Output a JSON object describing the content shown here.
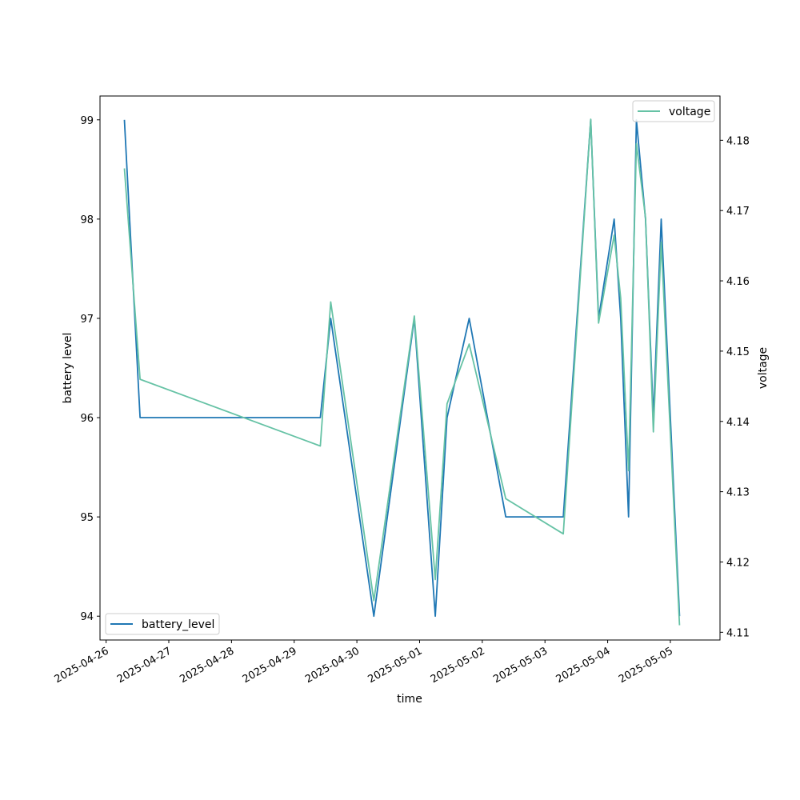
{
  "chart_data": {
    "type": "line",
    "xlabel": "time",
    "ylabel_left": "battery level",
    "ylabel_right": "voltage",
    "x_ticks": [
      "2025-04-26",
      "2025-04-27",
      "2025-04-28",
      "2025-04-29",
      "2025-04-30",
      "2025-05-01",
      "2025-05-02",
      "2025-05-03",
      "2025-05-04",
      "2025-05-05"
    ],
    "y_left_ticks": [
      "94",
      "95",
      "96",
      "97",
      "98",
      "99"
    ],
    "y_right_ticks": [
      "4.11",
      "4.12",
      "4.13",
      "4.14",
      "4.15",
      "4.16",
      "4.17",
      "4.18"
    ],
    "ylim_left": [
      93.76,
      99.24
    ],
    "ylim_right": [
      4.1089,
      4.1863
    ],
    "xlim": [
      "2025-04-25T21:40",
      "2025-05-05T19:00"
    ],
    "grid": false,
    "legend_left": "lower left",
    "legend_right": "upper right",
    "series": [
      {
        "name": "battery_level",
        "axis": "left",
        "color": "#1f77b4",
        "points": [
          [
            "2025-04-26T07:00",
            99
          ],
          [
            "2025-04-26T13:00",
            96
          ],
          [
            "2025-04-29T10:00",
            96
          ],
          [
            "2025-04-29T14:00",
            97
          ],
          [
            "2025-04-30T06:30",
            94
          ],
          [
            "2025-04-30T22:00",
            97
          ],
          [
            "2025-05-01T06:00",
            94
          ],
          [
            "2025-05-01T10:30",
            96
          ],
          [
            "2025-05-01T19:00",
            97
          ],
          [
            "2025-05-02T09:00",
            95
          ],
          [
            "2025-05-03T07:00",
            95
          ],
          [
            "2025-05-03T17:30",
            99
          ],
          [
            "2025-05-03T20:30",
            97
          ],
          [
            "2025-05-04T02:30",
            98
          ],
          [
            "2025-05-04T05:00",
            97
          ],
          [
            "2025-05-04T08:00",
            95
          ],
          [
            "2025-05-04T11:00",
            99
          ],
          [
            "2025-05-04T14:30",
            98
          ],
          [
            "2025-05-04T17:30",
            96
          ],
          [
            "2025-05-04T20:30",
            98
          ],
          [
            "2025-05-05T03:30",
            94
          ]
        ]
      },
      {
        "name": "voltage",
        "axis": "right",
        "color": "#66c2a5",
        "points": [
          [
            "2025-04-26T07:00",
            4.176
          ],
          [
            "2025-04-26T13:00",
            4.146
          ],
          [
            "2025-04-29T10:00",
            4.1365
          ],
          [
            "2025-04-29T14:00",
            4.157
          ],
          [
            "2025-04-30T06:30",
            4.1145
          ],
          [
            "2025-04-30T22:00",
            4.155
          ],
          [
            "2025-05-01T06:00",
            4.1175
          ],
          [
            "2025-05-01T10:30",
            4.1425
          ],
          [
            "2025-05-01T19:00",
            4.151
          ],
          [
            "2025-05-02T09:00",
            4.129
          ],
          [
            "2025-05-03T07:00",
            4.124
          ],
          [
            "2025-05-03T17:30",
            4.183
          ],
          [
            "2025-05-03T20:30",
            4.154
          ],
          [
            "2025-05-04T02:30",
            4.1665
          ],
          [
            "2025-05-04T05:00",
            4.1575
          ],
          [
            "2025-05-04T08:00",
            4.133
          ],
          [
            "2025-05-04T11:00",
            4.1795
          ],
          [
            "2025-05-04T14:30",
            4.169
          ],
          [
            "2025-05-04T17:30",
            4.1385
          ],
          [
            "2025-05-04T20:30",
            4.1655
          ],
          [
            "2025-05-05T03:30",
            4.111
          ]
        ]
      }
    ]
  }
}
